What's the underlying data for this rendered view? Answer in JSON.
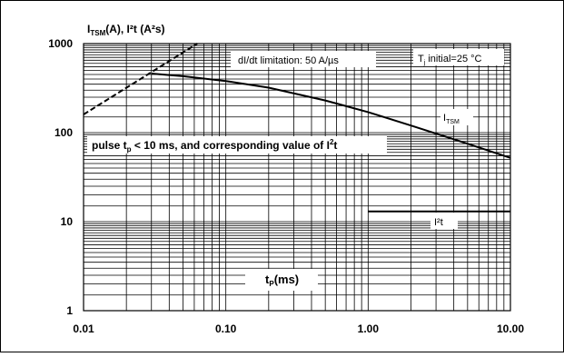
{
  "chart_data": {
    "type": "line",
    "title": "",
    "ylabel_main": "I",
    "ylabel_sub": "TSM",
    "ylabel_rest": "(A), I²t (A²s)",
    "xlabel_main": "t",
    "xlabel_sub": "P",
    "xlabel_rest": "(ms)",
    "x_scale": "log",
    "y_scale": "log",
    "xlim": [
      0.01,
      10
    ],
    "ylim": [
      1,
      1000
    ],
    "x_ticks": [
      {
        "value": 0.01,
        "label": "0.01"
      },
      {
        "value": 0.1,
        "label": "0.10"
      },
      {
        "value": 1,
        "label": "1.00"
      },
      {
        "value": 10,
        "label": "10.00"
      }
    ],
    "y_ticks": [
      {
        "value": 1,
        "label": "1"
      },
      {
        "value": 10,
        "label": "10"
      },
      {
        "value": 100,
        "label": "100"
      },
      {
        "value": 1000,
        "label": "1000"
      }
    ],
    "grid": true,
    "annotations": {
      "didt": "dI/dt limitation: 50 A/µs",
      "tj_main": "T",
      "tj_sub": "j",
      "tj_rest": " initial=25 °C",
      "pulse_a": "pulse t",
      "pulse_sub": "p",
      "pulse_b": " < 10 ms, and corresponding value of I",
      "pulse_sup": "2",
      "pulse_c": "t"
    },
    "series": [
      {
        "name": "I_TSM",
        "label_main": "I",
        "label_sub": "TSM",
        "style": "solid",
        "x": [
          0.03,
          0.05,
          0.1,
          0.2,
          0.5,
          1,
          2,
          5,
          10
        ],
        "y": [
          460,
          430,
          380,
          320,
          230,
          170,
          120,
          75,
          52
        ]
      },
      {
        "name": "I2t",
        "label_main": "I²t",
        "style": "solid",
        "x": [
          1,
          10
        ],
        "y": [
          13,
          13
        ]
      },
      {
        "name": "dI/dt limitation",
        "style": "dashed",
        "x": [
          0.01,
          0.063
        ],
        "y": [
          160,
          1000
        ]
      }
    ]
  }
}
